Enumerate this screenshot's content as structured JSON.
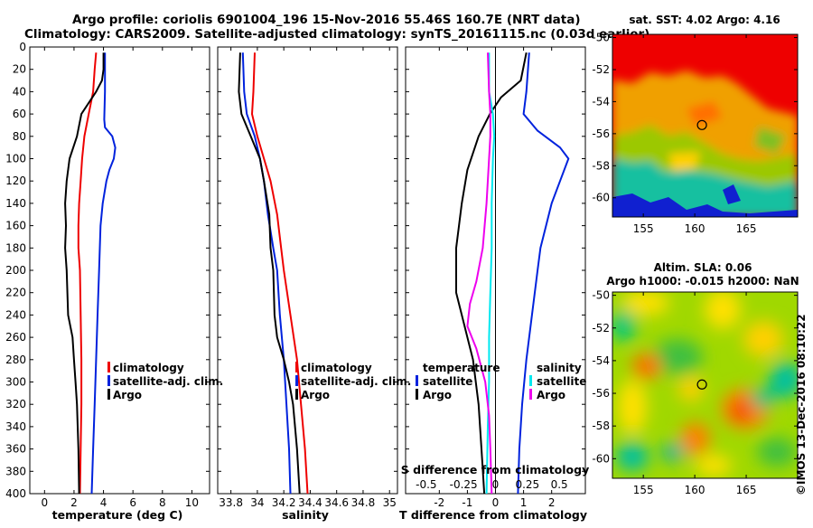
{
  "title_line1": "Argo profile: coriolis 6901004_196 15-Nov-2016 55.46S 160.7E (NRT data)",
  "title_line2": "Climatology: CARS2009. Satellite-adjusted climatology: synTS_20161115.nc (0.03d earlier)",
  "credit": "©IMOS 13-Dec-2016 08:10:22",
  "colors": {
    "climatology": "#ee0000",
    "satellite": "#0022dd",
    "argo": "#000000",
    "sat_salinity": "#00e8f0",
    "clim_salinity": "#ee00ee"
  },
  "chart_data": [
    {
      "type": "line",
      "id": "temperature",
      "xlabel": "temperature (deg C)",
      "ylabel": "",
      "xlim": [
        -1,
        11.2
      ],
      "ylim": [
        400,
        0
      ],
      "xticks": [
        "0",
        "2",
        "4",
        "6",
        "8",
        "10"
      ],
      "xtick_values": [
        0,
        2,
        4,
        6,
        8,
        10
      ],
      "yticks": [
        "0",
        "20",
        "40",
        "60",
        "80",
        "100",
        "120",
        "140",
        "160",
        "180",
        "200",
        "220",
        "240",
        "260",
        "280",
        "300",
        "320",
        "340",
        "360",
        "380",
        "400"
      ],
      "ytick_values": [
        0,
        20,
        40,
        60,
        80,
        100,
        120,
        140,
        160,
        180,
        200,
        220,
        240,
        260,
        280,
        300,
        320,
        340,
        360,
        380,
        400
      ],
      "legend": [
        "climatology",
        "satellite-adj. clim.",
        "Argo"
      ],
      "series": [
        {
          "name": "climatology",
          "color": "#ee0000",
          "points": [
            [
              3.5,
              5
            ],
            [
              3.4,
              20
            ],
            [
              3.3,
              40
            ],
            [
              3.0,
              60
            ],
            [
              2.7,
              80
            ],
            [
              2.55,
              100
            ],
            [
              2.45,
              120
            ],
            [
              2.35,
              140
            ],
            [
              2.3,
              160
            ],
            [
              2.3,
              180
            ],
            [
              2.4,
              200
            ],
            [
              2.45,
              240
            ],
            [
              2.5,
              280
            ],
            [
              2.5,
              320
            ],
            [
              2.45,
              360
            ],
            [
              2.4,
              400
            ]
          ]
        },
        {
          "name": "satellite-adj. clim.",
          "color": "#0022dd",
          "points": [
            [
              4.1,
              5
            ],
            [
              4.1,
              40
            ],
            [
              4.05,
              65
            ],
            [
              4.1,
              72
            ],
            [
              4.6,
              80
            ],
            [
              4.8,
              90
            ],
            [
              4.7,
              100
            ],
            [
              4.4,
              110
            ],
            [
              4.2,
              120
            ],
            [
              3.95,
              140
            ],
            [
              3.8,
              160
            ],
            [
              3.7,
              200
            ],
            [
              3.6,
              240
            ],
            [
              3.5,
              280
            ],
            [
              3.4,
              320
            ],
            [
              3.3,
              360
            ],
            [
              3.2,
              400
            ]
          ]
        },
        {
          "name": "Argo",
          "color": "#000000",
          "points": [
            [
              4.0,
              5
            ],
            [
              4.0,
              20
            ],
            [
              3.9,
              30
            ],
            [
              3.5,
              40
            ],
            [
              3.0,
              50
            ],
            [
              2.5,
              60
            ],
            [
              2.2,
              80
            ],
            [
              1.7,
              100
            ],
            [
              1.5,
              120
            ],
            [
              1.4,
              140
            ],
            [
              1.45,
              160
            ],
            [
              1.4,
              180
            ],
            [
              1.5,
              200
            ],
            [
              1.6,
              240
            ],
            [
              1.9,
              260
            ],
            [
              2.0,
              280
            ],
            [
              2.1,
              300
            ],
            [
              2.2,
              320
            ],
            [
              2.3,
              360
            ],
            [
              2.35,
              400
            ]
          ]
        }
      ]
    },
    {
      "type": "line",
      "id": "salinity",
      "xlabel": "salinity",
      "xlim": [
        33.7,
        35.06
      ],
      "ylim": [
        400,
        0
      ],
      "xticks": [
        "33.8",
        "34",
        "34.2",
        "34.4",
        "34.6",
        "34.8",
        "35"
      ],
      "xtick_values": [
        33.8,
        34.0,
        34.2,
        34.4,
        34.6,
        34.8,
        35.0
      ],
      "legend": [
        "climatology",
        "satellite-adj. clim.",
        "Argo"
      ],
      "series": [
        {
          "name": "climatology",
          "color": "#ee0000",
          "points": [
            [
              33.98,
              5
            ],
            [
              33.97,
              40
            ],
            [
              33.96,
              60
            ],
            [
              34.0,
              80
            ],
            [
              34.05,
              100
            ],
            [
              34.1,
              120
            ],
            [
              34.15,
              150
            ],
            [
              34.18,
              180
            ],
            [
              34.2,
              200
            ],
            [
              34.25,
              240
            ],
            [
              34.3,
              280
            ],
            [
              34.33,
              320
            ],
            [
              34.36,
              360
            ],
            [
              34.38,
              400
            ]
          ]
        },
        {
          "name": "satellite-adj. clim.",
          "color": "#0022dd",
          "points": [
            [
              33.89,
              5
            ],
            [
              33.9,
              40
            ],
            [
              33.92,
              60
            ],
            [
              33.98,
              80
            ],
            [
              34.02,
              100
            ],
            [
              34.05,
              120
            ],
            [
              34.08,
              150
            ],
            [
              34.12,
              180
            ],
            [
              34.15,
              200
            ],
            [
              34.17,
              240
            ],
            [
              34.2,
              280
            ],
            [
              34.22,
              320
            ],
            [
              34.24,
              360
            ],
            [
              34.25,
              400
            ]
          ]
        },
        {
          "name": "Argo",
          "color": "#000000",
          "points": [
            [
              33.87,
              5
            ],
            [
              33.86,
              40
            ],
            [
              33.88,
              60
            ],
            [
              33.95,
              80
            ],
            [
              34.02,
              100
            ],
            [
              34.05,
              120
            ],
            [
              34.09,
              150
            ],
            [
              34.1,
              180
            ],
            [
              34.12,
              200
            ],
            [
              34.13,
              240
            ],
            [
              34.15,
              260
            ],
            [
              34.2,
              280
            ],
            [
              34.24,
              300
            ],
            [
              34.27,
              320
            ],
            [
              34.3,
              360
            ],
            [
              34.32,
              400
            ]
          ]
        }
      ]
    },
    {
      "type": "line",
      "id": "difference",
      "xlabel": "T difference from climatology",
      "xlim": [
        -3.2,
        3.2
      ],
      "ylim": [
        400,
        0
      ],
      "xticks": [
        "-2",
        "-1",
        "0",
        "1",
        "2"
      ],
      "xtick_values": [
        -2,
        -1,
        0,
        1,
        2
      ],
      "xlabel2": "S difference from climatology",
      "xticks2": [
        "-0.5",
        "-0.25",
        "0",
        "0.25",
        "0.5"
      ],
      "xtick2_values": [
        -0.5,
        -0.25,
        0,
        0.25,
        0.5
      ],
      "legend_left_title": "temperature",
      "legend_left": [
        "satellite",
        "Argo"
      ],
      "legend_right_title": "salinity",
      "legend_right": [
        "satellite",
        "Argo"
      ],
      "series": [
        {
          "name": "T satellite",
          "color": "#0022dd",
          "axis": "T",
          "points": [
            [
              1.2,
              5
            ],
            [
              1.1,
              40
            ],
            [
              1.0,
              60
            ],
            [
              1.5,
              75
            ],
            [
              2.3,
              90
            ],
            [
              2.6,
              100
            ],
            [
              2.3,
              120
            ],
            [
              2.0,
              140
            ],
            [
              1.8,
              160
            ],
            [
              1.6,
              180
            ],
            [
              1.5,
              200
            ],
            [
              1.3,
              240
            ],
            [
              1.1,
              280
            ],
            [
              0.95,
              320
            ],
            [
              0.85,
              360
            ],
            [
              0.8,
              400
            ]
          ]
        },
        {
          "name": "T Argo",
          "color": "#000000",
          "axis": "T",
          "points": [
            [
              1.1,
              5
            ],
            [
              0.9,
              30
            ],
            [
              0.2,
              45
            ],
            [
              -0.2,
              60
            ],
            [
              -0.6,
              80
            ],
            [
              -1.0,
              110
            ],
            [
              -1.2,
              140
            ],
            [
              -1.4,
              180
            ],
            [
              -1.4,
              220
            ],
            [
              -1.1,
              250
            ],
            [
              -0.8,
              280
            ],
            [
              -0.6,
              320
            ],
            [
              -0.5,
              360
            ],
            [
              -0.4,
              400
            ]
          ]
        },
        {
          "name": "S satellite",
          "color": "#00e8f0",
          "axis": "S",
          "points": [
            [
              -0.05,
              5
            ],
            [
              -0.05,
              40
            ],
            [
              -0.02,
              60
            ],
            [
              -0.01,
              80
            ],
            [
              -0.02,
              100
            ],
            [
              -0.03,
              140
            ],
            [
              -0.03,
              180
            ],
            [
              -0.04,
              220
            ],
            [
              -0.05,
              260
            ],
            [
              -0.05,
              300
            ],
            [
              -0.06,
              340
            ],
            [
              -0.07,
              400
            ]
          ]
        },
        {
          "name": "S Argo",
          "color": "#ee00ee",
          "axis": "S",
          "points": [
            [
              -0.06,
              5
            ],
            [
              -0.05,
              40
            ],
            [
              -0.04,
              60
            ],
            [
              -0.04,
              80
            ],
            [
              -0.05,
              100
            ],
            [
              -0.07,
              140
            ],
            [
              -0.1,
              180
            ],
            [
              -0.15,
              210
            ],
            [
              -0.2,
              230
            ],
            [
              -0.22,
              250
            ],
            [
              -0.15,
              270
            ],
            [
              -0.08,
              300
            ],
            [
              -0.05,
              330
            ],
            [
              -0.04,
              360
            ],
            [
              -0.03,
              400
            ]
          ]
        }
      ]
    }
  ],
  "sst_map": {
    "title": "sat. SST: 4.02 Argo: 4.16",
    "xticks": [
      "155",
      "160",
      "165"
    ],
    "yticks": [
      "-50",
      "-52",
      "-54",
      "-56",
      "-58",
      "-60"
    ],
    "lon_range": [
      152,
      170
    ],
    "lat_range": [
      -61.2,
      -49.8
    ],
    "argo_lon": 160.7,
    "argo_lat": -55.46
  },
  "sla_map": {
    "title1": "Altim. SLA: 0.06",
    "title2": "Argo h1000: -0.015 h2000: NaN",
    "xticks": [
      "155",
      "160",
      "165"
    ],
    "yticks": [
      "-50",
      "-52",
      "-54",
      "-56",
      "-58",
      "-60"
    ],
    "lon_range": [
      152,
      170
    ],
    "lat_range": [
      -61.2,
      -49.8
    ],
    "argo_lon": 160.7,
    "argo_lat": -55.46
  }
}
